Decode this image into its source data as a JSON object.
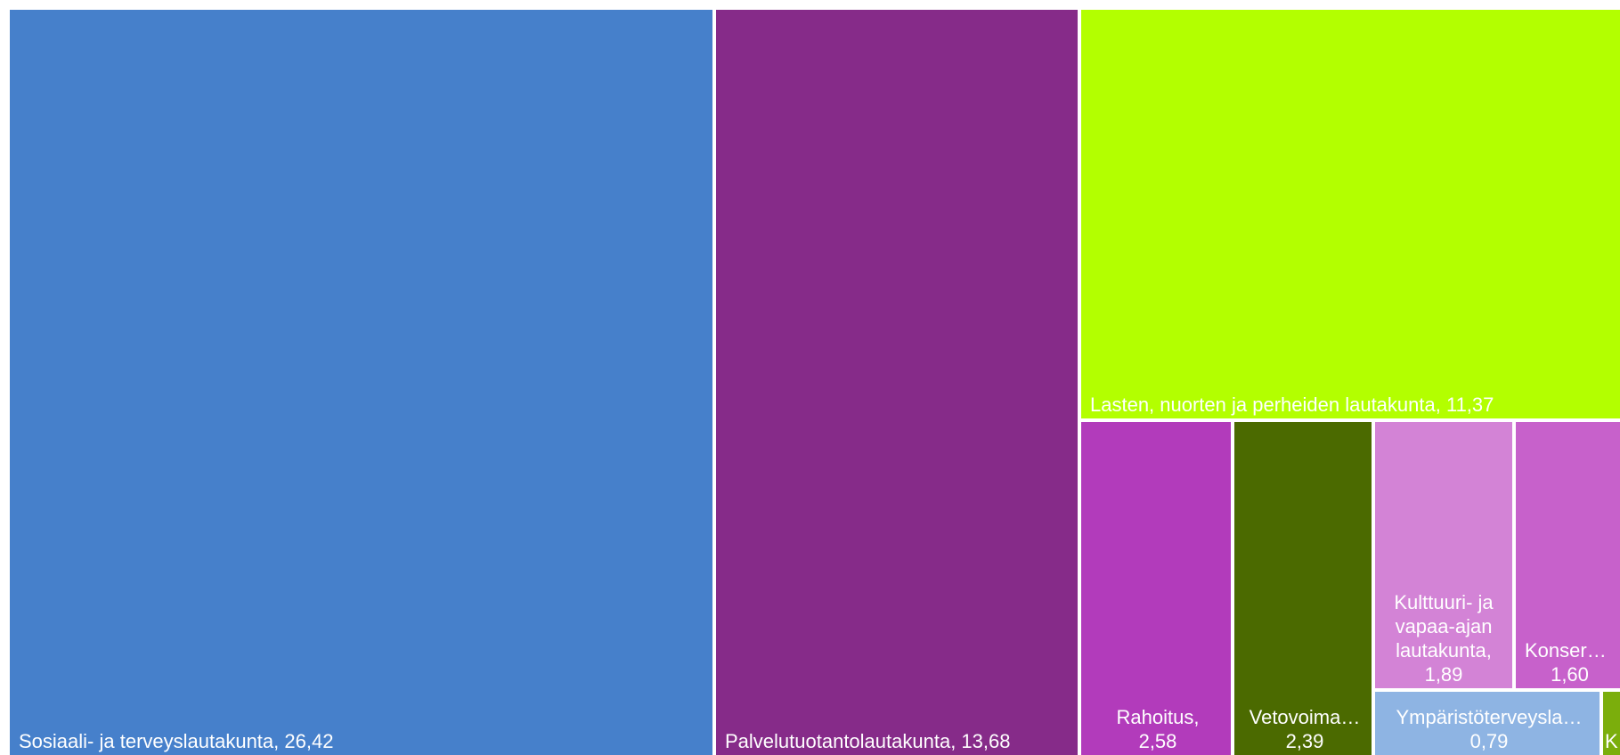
{
  "chart_data": {
    "type": "treemap",
    "items": [
      {
        "name": "Sosiaali- ja terveyslautakunta",
        "value": 26.42,
        "label": "Sosiaali- ja terveyslautakunta, 26,42",
        "color": "#4680CB"
      },
      {
        "name": "Palvelutuotantolautakunta",
        "value": 13.68,
        "label": "Palvelutuotantolautakunta, 13,68",
        "color": "#862B89"
      },
      {
        "name": "Lasten, nuorten ja perheiden lautakunta",
        "value": 11.37,
        "label": "Lasten, nuorten ja perheiden lautakunta, 11,37",
        "color": "#B3FF00"
      },
      {
        "name": "Rahoitus",
        "value": 2.58,
        "label": "Rahoitus, 2,58",
        "color": "#B23BBB"
      },
      {
        "name": "Vetovoima…",
        "value": 2.39,
        "label": "Vetovoima… 2,39",
        "color": "#4B6A00"
      },
      {
        "name": "Kulttuuri- ja vapaa-ajan lautakunta",
        "value": 1.89,
        "label": "Kulttuuri- ja vapaa-ajan lautakunta, 1,89",
        "color": "#D383D6"
      },
      {
        "name": "Konsern…",
        "value": 1.6,
        "label": "Konsern… 1,60",
        "color": "#C761CB"
      },
      {
        "name": "Ympäristöterveysla…",
        "value": 0.79,
        "label": "Ympäristöterveysla… 0,79",
        "color": "#8EB4E3"
      },
      {
        "name": "K…",
        "value": null,
        "label": "K…",
        "color": "#7BAE0C"
      }
    ]
  }
}
